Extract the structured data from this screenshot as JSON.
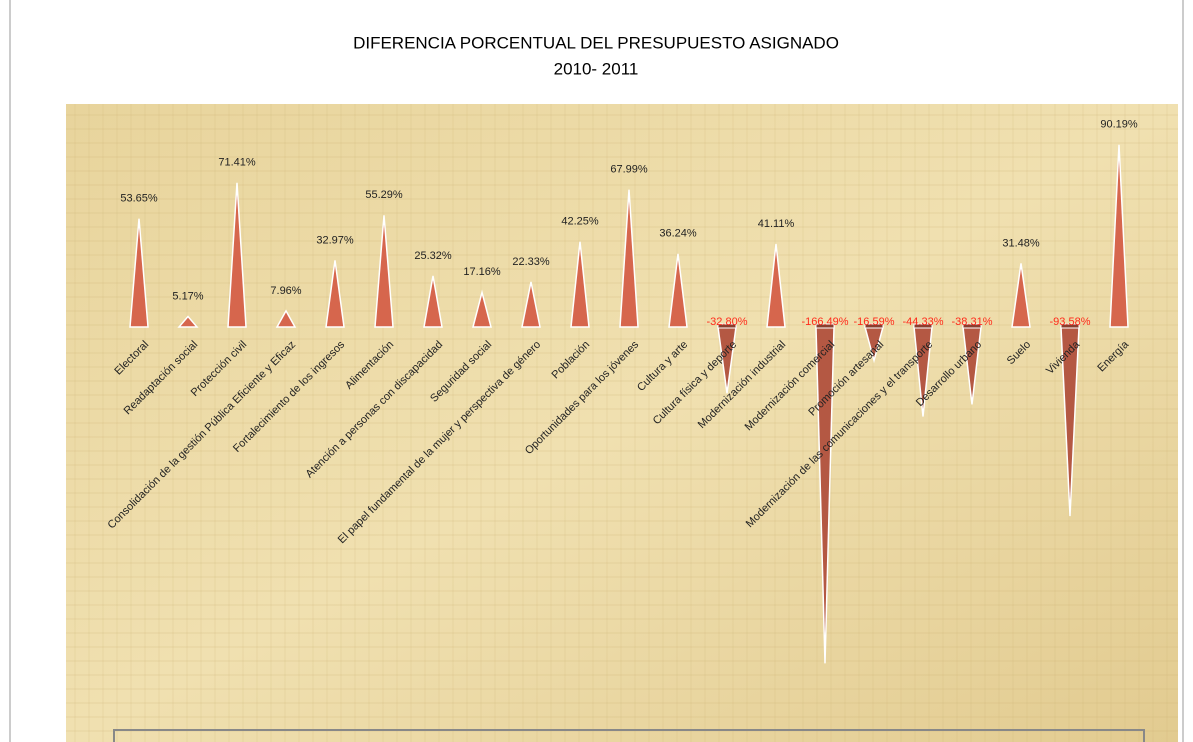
{
  "chart_data": {
    "type": "cone",
    "title": "DIFERENCIA PORCENTUAL DEL PRESUPUESTO ASIGNADO",
    "subtitle": "2010- 2011",
    "categories": [
      "Electoral",
      "Readaptación  social",
      "Protección civil",
      "Consolidación de la gestión Pública Eficiente y Eficaz",
      "Fortalecimiento de los ingresos",
      "Alimentación",
      "Atención a personas con discapacidad",
      "Seguridad social",
      "El papel fundamental de la mujer y perspectiva de género",
      "Población",
      "Oportunidades para los jóvenes",
      "Cultura y arte",
      "Cultura física y deporte",
      "Modernización industrial",
      "Modernización comercial",
      "Promoción artesanal",
      "Modernización de las comunicaciones y el transporte",
      "Desarrollo urbano",
      "Suelo",
      "Vivienda",
      "Energía"
    ],
    "values": [
      53.65,
      5.17,
      71.41,
      7.96,
      32.97,
      55.29,
      25.32,
      17.16,
      22.33,
      42.25,
      67.99,
      36.24,
      -32.8,
      41.11,
      -166.49,
      -16.59,
      -44.33,
      -38.31,
      31.48,
      -93.58,
      90.19
    ],
    "value_labels": [
      "53.65%",
      "5.17%",
      "71.41%",
      "7.96%",
      "32.97%",
      "55.29%",
      "25.32%",
      "17.16%",
      "22.33%",
      "42.25%",
      "67.99%",
      "36.24%",
      "-32.80%",
      "41.11%",
      "-166.49%",
      "-16.59%",
      "-44.33%",
      "-38.31%",
      "31.48%",
      "-93.58%",
      "90.19%"
    ],
    "color": "#d6664d",
    "negative_color": "#b45843",
    "negative_label_color": "#ff2a1a"
  }
}
